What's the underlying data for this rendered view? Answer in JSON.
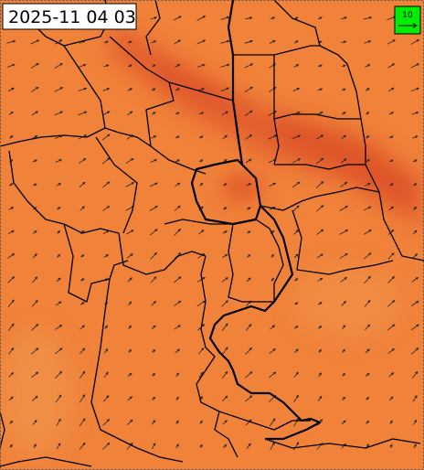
{
  "timestamp": "2025-11 04 03",
  "legend": {
    "label": "10"
  }
}
